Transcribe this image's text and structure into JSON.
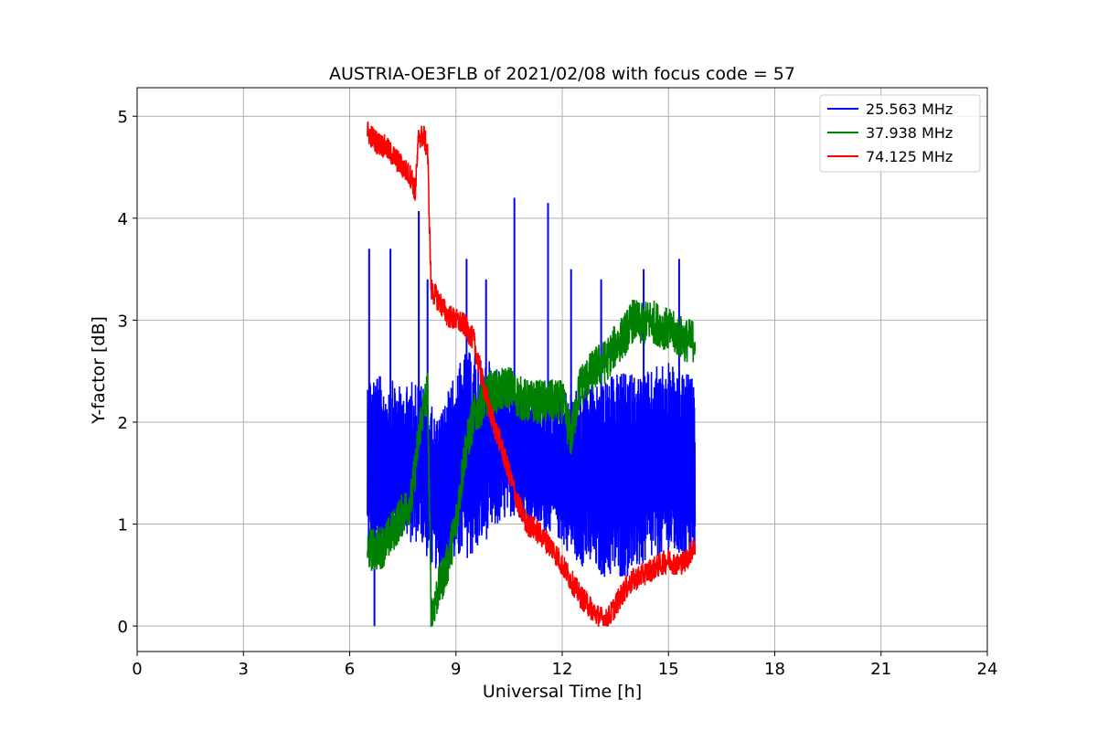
{
  "chart_data": {
    "type": "line",
    "title": "AUSTRIA-OE3FLB of 2021/02/08 with focus code = 57",
    "xlabel": "Universal Time [h]",
    "ylabel": "Y-factor [dB]",
    "xlim": [
      0,
      24
    ],
    "ylim": [
      -0.25,
      5.28
    ],
    "xticks": [
      0,
      3,
      6,
      9,
      12,
      15,
      18,
      21,
      24
    ],
    "xtick_labels": [
      "0",
      "3",
      "6",
      "9",
      "12",
      "15",
      "18",
      "21",
      "24"
    ],
    "yticks": [
      0,
      1,
      2,
      3,
      4,
      5
    ],
    "ytick_labels": [
      "0",
      "1",
      "2",
      "3",
      "4",
      "5"
    ],
    "grid": true,
    "legend_position": "top-right",
    "series": [
      {
        "name": "25.563 MHz",
        "color": "#0000ff",
        "x": [
          6.5,
          6.75,
          7.0,
          7.25,
          7.5,
          7.75,
          8.0,
          8.25,
          8.5,
          8.75,
          9.0,
          9.25,
          9.5,
          9.75,
          10.0,
          10.25,
          10.5,
          10.75,
          11.0,
          11.25,
          11.5,
          11.75,
          12.0,
          12.25,
          12.5,
          12.75,
          13.0,
          13.25,
          13.5,
          13.75,
          14.0,
          14.25,
          14.5,
          14.75,
          15.0,
          15.25,
          15.5,
          15.75
        ],
        "y_low": [
          0.6,
          0.5,
          0.6,
          0.7,
          0.8,
          0.7,
          0.75,
          0.5,
          0.45,
          0.45,
          0.5,
          0.55,
          0.55,
          0.7,
          0.8,
          0.9,
          1.0,
          1.0,
          0.95,
          0.9,
          0.85,
          0.85,
          0.7,
          0.6,
          0.5,
          0.45,
          0.4,
          0.35,
          0.35,
          0.35,
          0.4,
          0.45,
          0.5,
          0.55,
          0.55,
          0.55,
          0.55,
          0.5
        ],
        "y_high": [
          2.6,
          2.6,
          2.5,
          2.5,
          2.4,
          2.5,
          2.5,
          2.3,
          2.1,
          2.4,
          2.6,
          2.8,
          2.8,
          2.7,
          2.7,
          2.6,
          2.5,
          2.4,
          2.3,
          2.3,
          2.3,
          2.3,
          2.4,
          2.4,
          2.4,
          2.5,
          2.5,
          2.5,
          2.6,
          2.6,
          2.6,
          2.6,
          2.6,
          2.7,
          2.7,
          2.6,
          2.6,
          2.5
        ],
        "spikes": [
          [
            6.55,
            3.7
          ],
          [
            6.7,
            0.0
          ],
          [
            7.15,
            3.7
          ],
          [
            7.95,
            4.07
          ],
          [
            8.2,
            3.4
          ],
          [
            9.3,
            3.6
          ],
          [
            10.65,
            4.2
          ],
          [
            11.6,
            4.15
          ],
          [
            12.25,
            3.5
          ],
          [
            13.1,
            3.4
          ],
          [
            14.3,
            3.5
          ],
          [
            15.3,
            3.6
          ],
          [
            9.85,
            3.4
          ]
        ]
      },
      {
        "name": "37.938 MHz",
        "color": "#008000",
        "x": [
          6.5,
          6.75,
          7.0,
          7.25,
          7.5,
          7.75,
          8.0,
          8.2,
          8.3,
          8.5,
          8.75,
          9.0,
          9.25,
          9.5,
          9.75,
          10.0,
          10.25,
          10.5,
          10.75,
          11.0,
          11.25,
          11.5,
          11.75,
          12.0,
          12.25,
          12.5,
          12.75,
          13.0,
          13.25,
          13.5,
          13.75,
          14.0,
          14.25,
          14.5,
          14.75,
          15.0,
          15.25,
          15.5,
          15.75
        ],
        "y": [
          0.75,
          0.75,
          0.8,
          0.95,
          1.1,
          1.25,
          2.0,
          2.3,
          0.1,
          0.35,
          0.6,
          1.0,
          1.7,
          2.05,
          2.2,
          2.3,
          2.3,
          2.35,
          2.25,
          2.2,
          2.2,
          2.2,
          2.2,
          2.2,
          1.85,
          2.35,
          2.45,
          2.55,
          2.6,
          2.75,
          2.85,
          3.0,
          2.95,
          3.0,
          2.95,
          2.9,
          2.85,
          2.8,
          2.8
        ],
        "spread": 0.22
      },
      {
        "name": "74.125 MHz",
        "color": "#ff0000",
        "x": [
          6.5,
          6.75,
          7.0,
          7.25,
          7.5,
          7.75,
          7.85,
          7.95,
          8.1,
          8.2,
          8.3,
          8.5,
          8.75,
          9.0,
          9.25,
          9.5,
          9.75,
          10.0,
          10.25,
          10.5,
          10.75,
          11.0,
          11.25,
          11.5,
          11.75,
          12.0,
          12.25,
          12.5,
          12.75,
          13.0,
          13.25,
          13.5,
          13.75,
          14.0,
          14.25,
          14.5,
          14.75,
          15.0,
          15.25,
          15.5,
          15.75
        ],
        "y": [
          4.85,
          4.75,
          4.7,
          4.6,
          4.5,
          4.4,
          4.25,
          4.8,
          4.8,
          4.65,
          3.3,
          3.2,
          3.05,
          3.0,
          2.95,
          2.8,
          2.4,
          2.05,
          1.8,
          1.5,
          1.2,
          1.0,
          0.95,
          0.85,
          0.75,
          0.6,
          0.45,
          0.3,
          0.2,
          0.1,
          0.05,
          0.2,
          0.35,
          0.45,
          0.5,
          0.55,
          0.6,
          0.65,
          0.6,
          0.65,
          0.8
        ],
        "spread": 0.12
      }
    ]
  }
}
